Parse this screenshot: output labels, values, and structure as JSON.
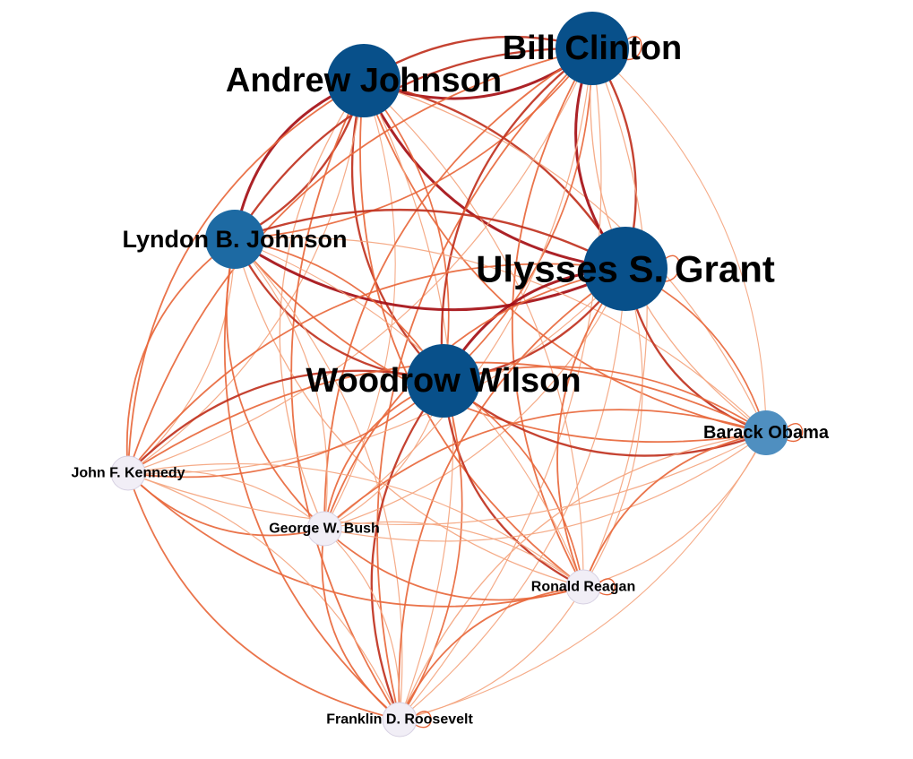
{
  "graph": {
    "colors": {
      "background": "#ffffff",
      "edge_light": "#f4a57f",
      "edge_medium": "#e8683c",
      "edge_strong": "#c0321f",
      "edge_strongest": "#a50f15",
      "node_large": "#08508a",
      "node_medium": "#1d6aa3",
      "node_small": "#4f8fc0",
      "node_minor": "#f1eef6"
    },
    "nodes": [
      {
        "id": "andrew-johnson",
        "label": "Andrew Johnson",
        "weight": "large"
      },
      {
        "id": "bill-clinton",
        "label": "Bill Clinton",
        "weight": "large"
      },
      {
        "id": "lyndon-b-johnson",
        "label": "Lyndon B. Johnson",
        "weight": "medium"
      },
      {
        "id": "ulysses-s-grant",
        "label": "Ulysses S. Grant",
        "weight": "largest"
      },
      {
        "id": "woodrow-wilson",
        "label": "Woodrow Wilson",
        "weight": "large"
      },
      {
        "id": "barack-obama",
        "label": "Barack Obama",
        "weight": "small"
      },
      {
        "id": "john-f-kennedy",
        "label": "John F. Kennedy",
        "weight": "minor"
      },
      {
        "id": "george-w-bush",
        "label": "George W. Bush",
        "weight": "minor"
      },
      {
        "id": "ronald-reagan",
        "label": "Ronald Reagan",
        "weight": "minor"
      },
      {
        "id": "franklin-d-roosevelt",
        "label": "Franklin D. Roosevelt",
        "weight": "minor"
      }
    ],
    "edges": [
      {
        "source": "andrew-johnson",
        "target": "bill-clinton",
        "strength": "strongest"
      },
      {
        "source": "andrew-johnson",
        "target": "lyndon-b-johnson",
        "strength": "strongest"
      },
      {
        "source": "andrew-johnson",
        "target": "ulysses-s-grant",
        "strength": "strongest"
      },
      {
        "source": "andrew-johnson",
        "target": "woodrow-wilson",
        "strength": "strong"
      },
      {
        "source": "andrew-johnson",
        "target": "barack-obama",
        "strength": "medium"
      },
      {
        "source": "andrew-johnson",
        "target": "john-f-kennedy",
        "strength": "medium"
      },
      {
        "source": "andrew-johnson",
        "target": "george-w-bush",
        "strength": "light"
      },
      {
        "source": "andrew-johnson",
        "target": "ronald-reagan",
        "strength": "medium"
      },
      {
        "source": "andrew-johnson",
        "target": "franklin-d-roosevelt",
        "strength": "medium"
      },
      {
        "source": "bill-clinton",
        "target": "lyndon-b-johnson",
        "strength": "strong"
      },
      {
        "source": "bill-clinton",
        "target": "ulysses-s-grant",
        "strength": "strongest"
      },
      {
        "source": "bill-clinton",
        "target": "woodrow-wilson",
        "strength": "strong"
      },
      {
        "source": "bill-clinton",
        "target": "barack-obama",
        "strength": "light"
      },
      {
        "source": "bill-clinton",
        "target": "john-f-kennedy",
        "strength": "medium"
      },
      {
        "source": "bill-clinton",
        "target": "george-w-bush",
        "strength": "medium"
      },
      {
        "source": "bill-clinton",
        "target": "ronald-reagan",
        "strength": "medium"
      },
      {
        "source": "bill-clinton",
        "target": "franklin-d-roosevelt",
        "strength": "medium"
      },
      {
        "source": "lyndon-b-johnson",
        "target": "ulysses-s-grant",
        "strength": "strongest"
      },
      {
        "source": "lyndon-b-johnson",
        "target": "woodrow-wilson",
        "strength": "strong"
      },
      {
        "source": "lyndon-b-johnson",
        "target": "barack-obama",
        "strength": "medium"
      },
      {
        "source": "lyndon-b-johnson",
        "target": "john-f-kennedy",
        "strength": "medium"
      },
      {
        "source": "lyndon-b-johnson",
        "target": "george-w-bush",
        "strength": "medium"
      },
      {
        "source": "lyndon-b-johnson",
        "target": "ronald-reagan",
        "strength": "light"
      },
      {
        "source": "lyndon-b-johnson",
        "target": "franklin-d-roosevelt",
        "strength": "medium"
      },
      {
        "source": "ulysses-s-grant",
        "target": "woodrow-wilson",
        "strength": "strongest"
      },
      {
        "source": "ulysses-s-grant",
        "target": "barack-obama",
        "strength": "strong"
      },
      {
        "source": "ulysses-s-grant",
        "target": "john-f-kennedy",
        "strength": "medium"
      },
      {
        "source": "ulysses-s-grant",
        "target": "george-w-bush",
        "strength": "medium"
      },
      {
        "source": "ulysses-s-grant",
        "target": "ronald-reagan",
        "strength": "medium"
      },
      {
        "source": "ulysses-s-grant",
        "target": "franklin-d-roosevelt",
        "strength": "medium"
      },
      {
        "source": "woodrow-wilson",
        "target": "barack-obama",
        "strength": "strong"
      },
      {
        "source": "woodrow-wilson",
        "target": "john-f-kennedy",
        "strength": "strong"
      },
      {
        "source": "woodrow-wilson",
        "target": "george-w-bush",
        "strength": "medium"
      },
      {
        "source": "woodrow-wilson",
        "target": "ronald-reagan",
        "strength": "strong"
      },
      {
        "source": "woodrow-wilson",
        "target": "franklin-d-roosevelt",
        "strength": "strong"
      },
      {
        "source": "barack-obama",
        "target": "john-f-kennedy",
        "strength": "medium"
      },
      {
        "source": "barack-obama",
        "target": "george-w-bush",
        "strength": "medium"
      },
      {
        "source": "barack-obama",
        "target": "ronald-reagan",
        "strength": "medium"
      },
      {
        "source": "barack-obama",
        "target": "franklin-d-roosevelt",
        "strength": "light"
      },
      {
        "source": "john-f-kennedy",
        "target": "george-w-bush",
        "strength": "medium"
      },
      {
        "source": "john-f-kennedy",
        "target": "ronald-reagan",
        "strength": "medium"
      },
      {
        "source": "john-f-kennedy",
        "target": "franklin-d-roosevelt",
        "strength": "medium"
      },
      {
        "source": "george-w-bush",
        "target": "ronald-reagan",
        "strength": "medium"
      },
      {
        "source": "george-w-bush",
        "target": "franklin-d-roosevelt",
        "strength": "medium"
      },
      {
        "source": "ronald-reagan",
        "target": "franklin-d-roosevelt",
        "strength": "medium"
      }
    ]
  }
}
